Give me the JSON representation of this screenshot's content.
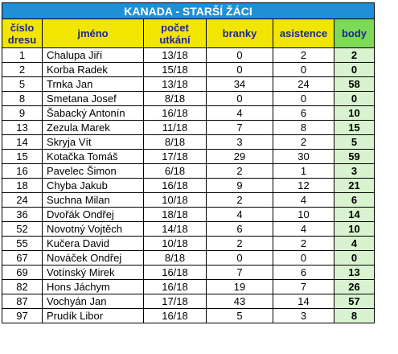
{
  "title": "KANADA - STARŠÍ ŽÁCI",
  "headers": {
    "number_line1": "číslo",
    "number_line2": "dresu",
    "name": "jméno",
    "games_line1": "počet",
    "games_line2": "utkání",
    "goals": "branky",
    "assists": "asistence",
    "points": "body"
  },
  "colors": {
    "title_bg": "#1f8fd8",
    "header_bg": "#f2e600",
    "header_points_bg": "#7ed957",
    "points_cell_bg": "#d9f2cf"
  },
  "players": [
    {
      "number": "1",
      "name": "Chalupa Jiří",
      "games": "13/18",
      "goals": "0",
      "assists": "2",
      "points": "2"
    },
    {
      "number": "2",
      "name": "Korba Radek",
      "games": "15/18",
      "goals": "0",
      "assists": "0",
      "points": "0"
    },
    {
      "number": "5",
      "name": "Trnka Jan",
      "games": "13/18",
      "goals": "34",
      "assists": "24",
      "points": "58"
    },
    {
      "number": "8",
      "name": "Smetana Josef",
      "games": "8/18",
      "goals": "0",
      "assists": "0",
      "points": "0"
    },
    {
      "number": "9",
      "name": "Šabacký Antonín",
      "games": "16/18",
      "goals": "4",
      "assists": "6",
      "points": "10"
    },
    {
      "number": "13",
      "name": "Zezula Marek",
      "games": "11/18",
      "goals": "7",
      "assists": "8",
      "points": "15"
    },
    {
      "number": "14",
      "name": "Skryja Vít",
      "games": "8/18",
      "goals": "3",
      "assists": "2",
      "points": "5"
    },
    {
      "number": "15",
      "name": "Kotačka Tomáš",
      "games": "17/18",
      "goals": "29",
      "assists": "30",
      "points": "59"
    },
    {
      "number": "16",
      "name": "Pavelec Šimon",
      "games": "6/18",
      "goals": "2",
      "assists": "1",
      "points": "3"
    },
    {
      "number": "18",
      "name": "Chyba Jakub",
      "games": "16/18",
      "goals": "9",
      "assists": "12",
      "points": "21"
    },
    {
      "number": "24",
      "name": "Suchna Milan",
      "games": "10/18",
      "goals": "2",
      "assists": "4",
      "points": "6"
    },
    {
      "number": "36",
      "name": "Dvořák Ondřej",
      "games": "18/18",
      "goals": "4",
      "assists": "10",
      "points": "14"
    },
    {
      "number": "52",
      "name": "Novotný Vojtěch",
      "games": "14/18",
      "goals": "6",
      "assists": "4",
      "points": "10"
    },
    {
      "number": "55",
      "name": "Kučera David",
      "games": "10/18",
      "goals": "2",
      "assists": "2",
      "points": "4"
    },
    {
      "number": "67",
      "name": "Nováček Ondřej",
      "games": "8/18",
      "goals": "0",
      "assists": "0",
      "points": "0"
    },
    {
      "number": "69",
      "name": "Votínský Mirek",
      "games": "16/18",
      "goals": "7",
      "assists": "6",
      "points": "13"
    },
    {
      "number": "82",
      "name": "Hons Jáchym",
      "games": "16/18",
      "goals": "19",
      "assists": "7",
      "points": "26"
    },
    {
      "number": "87",
      "name": "Vochyán Jan",
      "games": "17/18",
      "goals": "43",
      "assists": "14",
      "points": "57"
    },
    {
      "number": "97",
      "name": "Prudík Libor",
      "games": "16/18",
      "goals": "5",
      "assists": "3",
      "points": "8"
    }
  ]
}
